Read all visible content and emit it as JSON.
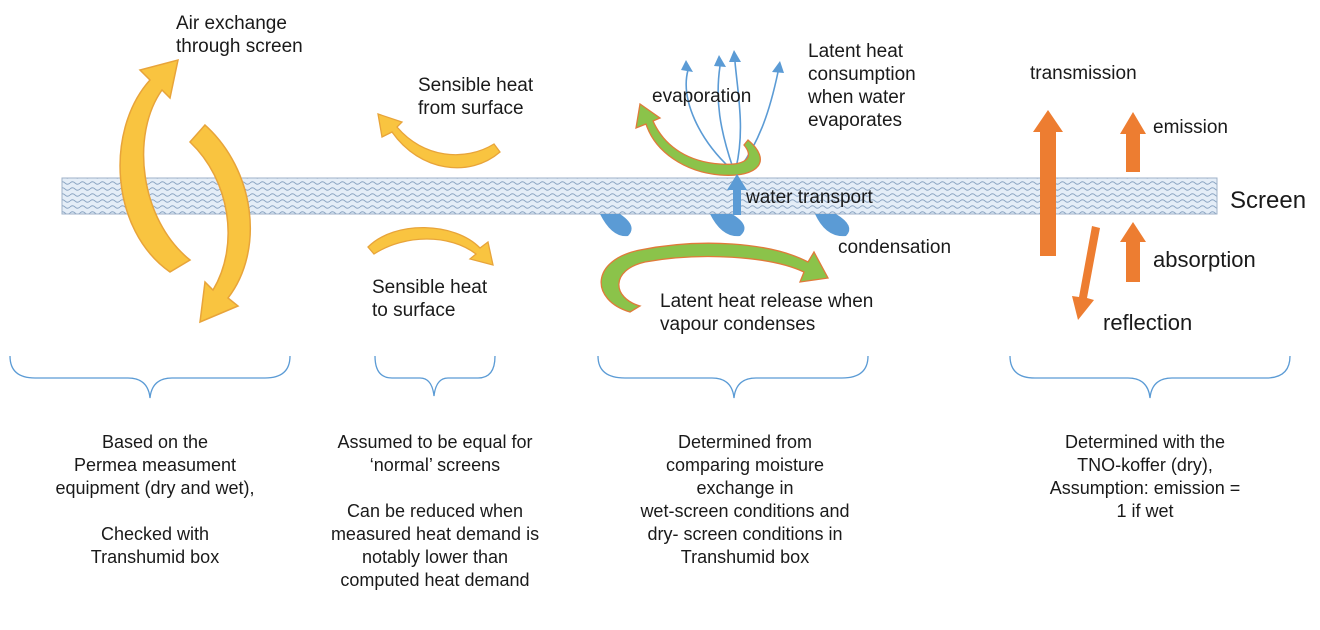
{
  "colors": {
    "air_arrow": "#f9c440",
    "air_arrow_edge": "#e8a43a",
    "latent_arrow": "#8bc34a",
    "latent_arrow_edge": "#e07a3a",
    "vapour": "#5b9bd5",
    "radiation_arrow": "#ed7d31",
    "brace": "#5b9bd5",
    "screen_fill": "#dfe9f5"
  },
  "labels": {
    "air_exchange": [
      "Air exchange",
      "through screen"
    ],
    "sensible_from": [
      "Sensible heat",
      "from surface"
    ],
    "sensible_to": [
      "Sensible heat",
      "to surface"
    ],
    "evaporation": "evaporation",
    "latent_consumption": [
      "Latent heat",
      "consumption",
      "when water",
      "evaporates"
    ],
    "water_transport": "water transport",
    "condensation": "condensation",
    "latent_release": [
      "Latent heat release when",
      "vapour condenses"
    ],
    "transmission": "transmission",
    "emission": "emission",
    "absorption": "absorption",
    "reflection": "reflection",
    "screen": "Screen"
  },
  "notes": {
    "air": [
      "Based on the",
      "Permea measument",
      "equipment (dry and wet),",
      "",
      "Checked with",
      "Transhumid box"
    ],
    "sensible": [
      "Assumed to be equal for",
      "‘normal’ screens",
      "",
      "Can be reduced when",
      "measured heat demand is",
      "notably lower than",
      "computed heat demand"
    ],
    "latent": [
      "Determined from",
      "comparing moisture",
      "exchange in",
      "wet-screen conditions and",
      "dry- screen conditions in",
      "Transhumid box"
    ],
    "radiation": [
      "Determined with the",
      "TNO-koffer (dry),",
      "Assumption: emission =",
      "1 if wet"
    ]
  }
}
